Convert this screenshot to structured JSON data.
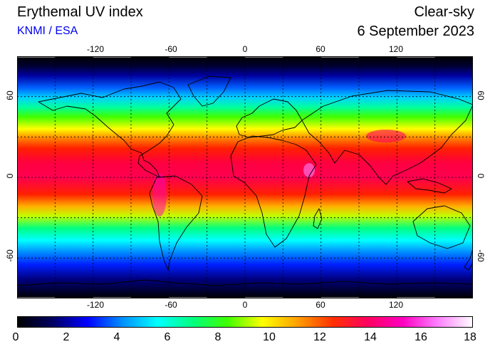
{
  "header": {
    "title": "Erythemal UV index",
    "source": "KNMI / ESA",
    "mode": "Clear-sky",
    "date": "6 September 2023"
  },
  "map": {
    "projection": "equirectangular",
    "lon_range": [
      -180,
      180
    ],
    "lat_range": [
      -90,
      90
    ],
    "lon_ticks": [
      "-120",
      "-60",
      "0",
      "60",
      "120"
    ],
    "lat_ticks": [
      "60",
      "0",
      "-60"
    ],
    "graticule": "30 degree dashed grid",
    "background_color": "#000000"
  },
  "colorbar": {
    "ticks": [
      "0",
      "2",
      "4",
      "6",
      "8",
      "10",
      "12",
      "14",
      "16",
      "18"
    ],
    "range": [
      0,
      18
    ],
    "colors": [
      "#000000",
      "#000060",
      "#0000ff",
      "#0090ff",
      "#00ffff",
      "#00ff80",
      "#40ff00",
      "#ffff00",
      "#ffa000",
      "#ff3000",
      "#ff0060",
      "#ff00c0",
      "#ff80ff",
      "#ffffff"
    ]
  }
}
